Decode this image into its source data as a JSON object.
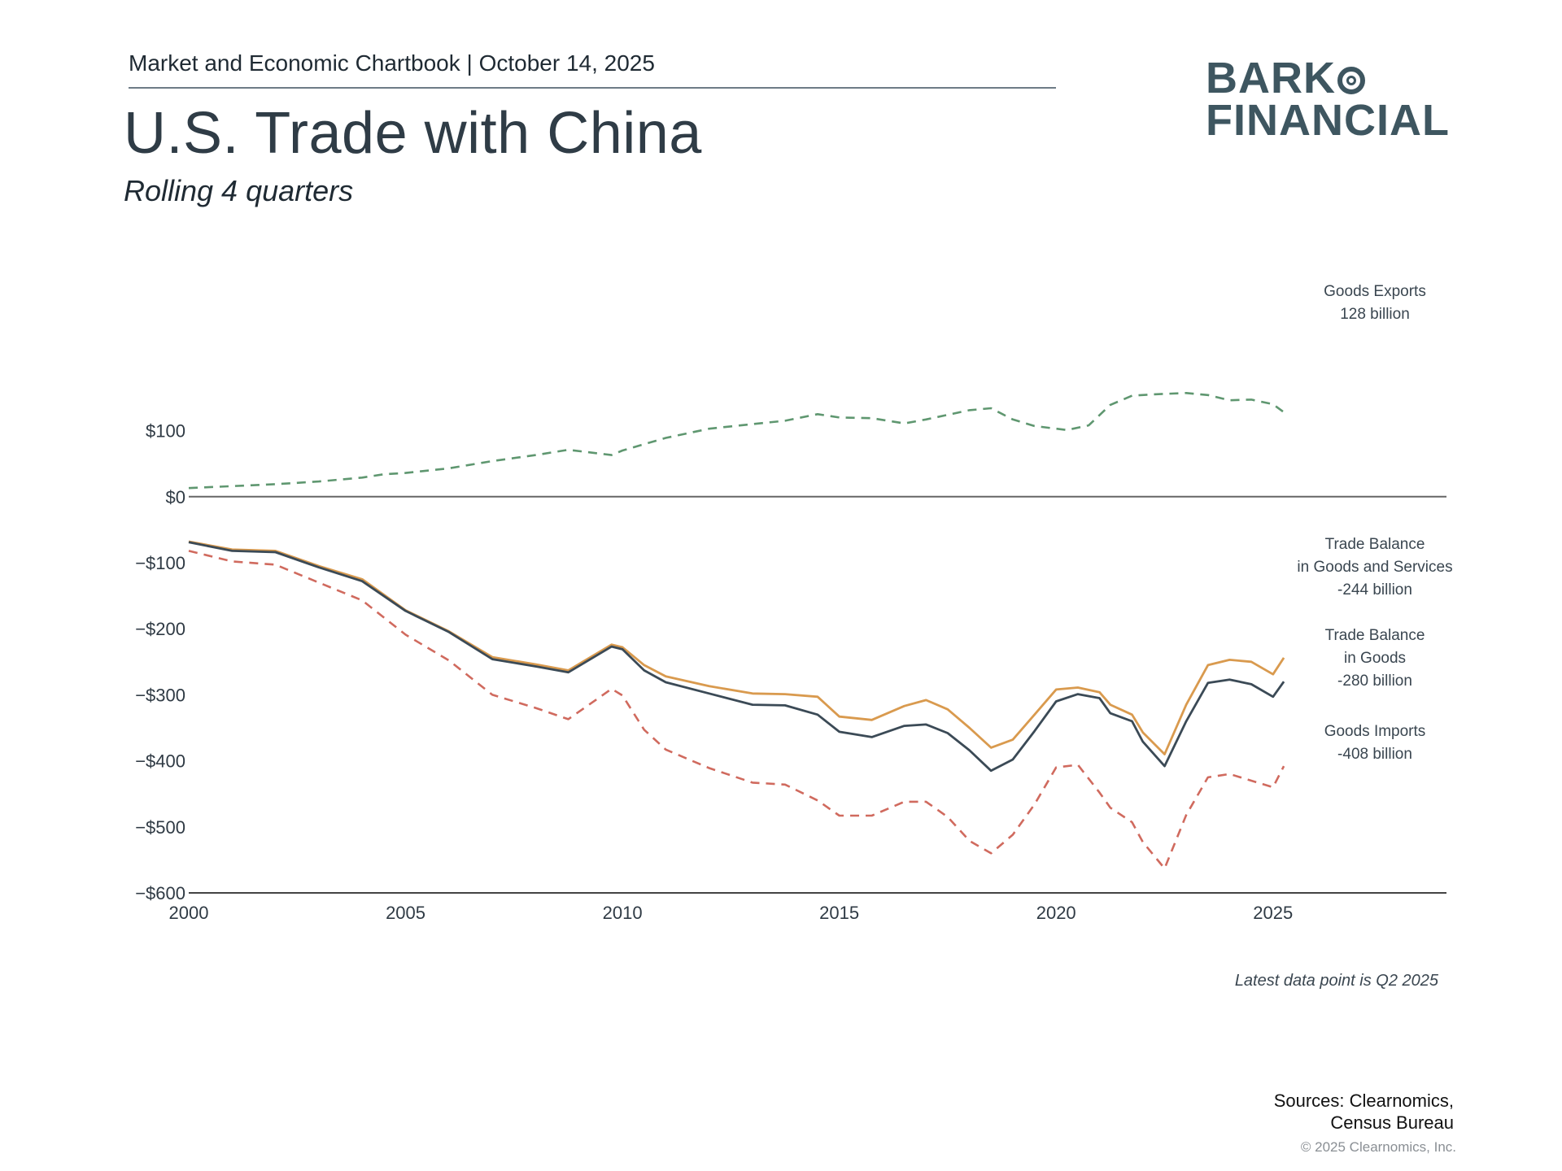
{
  "header": {
    "chartbook": "Market and Economic Chartbook | October 14, 2025",
    "title": "U.S. Trade with China",
    "subtitle": "Rolling 4 quarters"
  },
  "logo": {
    "line1": "BARK",
    "line2": "FINANCIAL"
  },
  "footer": {
    "note": "Latest data point is Q2 2025",
    "sources_line1": "Sources: Clearnomics,",
    "sources_line2": "Census Bureau",
    "copyright": "© 2025 Clearnomics, Inc."
  },
  "colors": {
    "exports": "#5f9770",
    "balance_gs": "#d99a4e",
    "balance_goods": "#3b4a56",
    "imports": "#d06a5e",
    "axis": "#555555"
  },
  "chart_data": {
    "type": "line",
    "title": "U.S. Trade with China",
    "subtitle": "Rolling 4 quarters",
    "xlabel": "",
    "ylabel": "",
    "xlim": [
      2000,
      2029
    ],
    "ylim": [
      -600,
      150
    ],
    "x_ticks": [
      2000,
      2005,
      2010,
      2015,
      2020,
      2025
    ],
    "y_ticks": [
      100,
      0,
      -100,
      -200,
      -300,
      -400,
      -500,
      -600
    ],
    "y_tick_labels": [
      "$100",
      "$0",
      "−$100",
      "−$200",
      "−$300",
      "−$400",
      "−$500",
      "−$600"
    ],
    "grid": false,
    "series": [
      {
        "name": "Goods Exports",
        "label_lines": [
          "Goods Exports",
          "128 billion"
        ],
        "style": "dashed",
        "color": "#5f9770",
        "points": [
          [
            2000.0,
            13
          ],
          [
            2001.0,
            16
          ],
          [
            2002.0,
            19
          ],
          [
            2003.0,
            23
          ],
          [
            2004.0,
            29
          ],
          [
            2004.5,
            34
          ],
          [
            2005.0,
            36
          ],
          [
            2006.0,
            43
          ],
          [
            2007.0,
            54
          ],
          [
            2008.0,
            63
          ],
          [
            2008.75,
            71
          ],
          [
            2009.75,
            63
          ],
          [
            2010.0,
            70
          ],
          [
            2011.0,
            89
          ],
          [
            2012.0,
            103
          ],
          [
            2013.0,
            110
          ],
          [
            2013.75,
            115
          ],
          [
            2014.5,
            125
          ],
          [
            2015.0,
            120
          ],
          [
            2015.75,
            119
          ],
          [
            2016.5,
            111
          ],
          [
            2017.0,
            117
          ],
          [
            2018.0,
            131
          ],
          [
            2018.5,
            134
          ],
          [
            2019.0,
            117
          ],
          [
            2019.5,
            107
          ],
          [
            2020.25,
            101
          ],
          [
            2020.75,
            108
          ],
          [
            2021.25,
            139
          ],
          [
            2021.75,
            153
          ],
          [
            2022.25,
            155
          ],
          [
            2023.0,
            157
          ],
          [
            2023.5,
            154
          ],
          [
            2024.0,
            146
          ],
          [
            2024.5,
            147
          ],
          [
            2025.0,
            140
          ],
          [
            2025.25,
            128
          ]
        ]
      },
      {
        "name": "Trade Balance in Goods and Services",
        "label_lines": [
          "Trade Balance",
          "in Goods and Services",
          "-244 billion"
        ],
        "style": "solid",
        "color": "#d99a4e",
        "points": [
          [
            2000.0,
            -68
          ],
          [
            2001.0,
            -80
          ],
          [
            2002.0,
            -82
          ],
          [
            2003.0,
            -105
          ],
          [
            2004.0,
            -125
          ],
          [
            2005.0,
            -172
          ],
          [
            2006.0,
            -204
          ],
          [
            2007.0,
            -243
          ],
          [
            2008.0,
            -254
          ],
          [
            2008.75,
            -263
          ],
          [
            2009.75,
            -224
          ],
          [
            2010.0,
            -228
          ],
          [
            2010.5,
            -255
          ],
          [
            2011.0,
            -272
          ],
          [
            2012.0,
            -287
          ],
          [
            2013.0,
            -298
          ],
          [
            2013.75,
            -299
          ],
          [
            2014.5,
            -303
          ],
          [
            2015.0,
            -333
          ],
          [
            2015.75,
            -338
          ],
          [
            2016.5,
            -317
          ],
          [
            2017.0,
            -308
          ],
          [
            2017.5,
            -322
          ],
          [
            2018.0,
            -350
          ],
          [
            2018.5,
            -380
          ],
          [
            2019.0,
            -368
          ],
          [
            2019.5,
            -330
          ],
          [
            2020.0,
            -292
          ],
          [
            2020.5,
            -289
          ],
          [
            2021.0,
            -296
          ],
          [
            2021.25,
            -315
          ],
          [
            2021.75,
            -330
          ],
          [
            2022.0,
            -357
          ],
          [
            2022.5,
            -390
          ],
          [
            2023.0,
            -315
          ],
          [
            2023.5,
            -255
          ],
          [
            2024.0,
            -247
          ],
          [
            2024.5,
            -250
          ],
          [
            2025.0,
            -269
          ],
          [
            2025.25,
            -244
          ]
        ]
      },
      {
        "name": "Trade Balance in Goods",
        "label_lines": [
          "Trade Balance",
          "in Goods",
          "-280 billion"
        ],
        "style": "solid",
        "color": "#3b4a56",
        "points": [
          [
            2000.0,
            -69
          ],
          [
            2001.0,
            -82
          ],
          [
            2002.0,
            -84
          ],
          [
            2003.0,
            -107
          ],
          [
            2004.0,
            -128
          ],
          [
            2005.0,
            -173
          ],
          [
            2006.0,
            -205
          ],
          [
            2007.0,
            -246
          ],
          [
            2008.0,
            -257
          ],
          [
            2008.75,
            -266
          ],
          [
            2009.75,
            -227
          ],
          [
            2010.0,
            -231
          ],
          [
            2010.5,
            -263
          ],
          [
            2011.0,
            -281
          ],
          [
            2012.0,
            -298
          ],
          [
            2013.0,
            -315
          ],
          [
            2013.75,
            -316
          ],
          [
            2014.5,
            -330
          ],
          [
            2015.0,
            -356
          ],
          [
            2015.75,
            -364
          ],
          [
            2016.5,
            -347
          ],
          [
            2017.0,
            -345
          ],
          [
            2017.5,
            -358
          ],
          [
            2018.0,
            -384
          ],
          [
            2018.5,
            -415
          ],
          [
            2019.0,
            -398
          ],
          [
            2019.5,
            -355
          ],
          [
            2020.0,
            -310
          ],
          [
            2020.5,
            -299
          ],
          [
            2021.0,
            -305
          ],
          [
            2021.25,
            -328
          ],
          [
            2021.75,
            -340
          ],
          [
            2022.0,
            -371
          ],
          [
            2022.5,
            -408
          ],
          [
            2023.0,
            -340
          ],
          [
            2023.5,
            -282
          ],
          [
            2024.0,
            -277
          ],
          [
            2024.5,
            -284
          ],
          [
            2025.0,
            -303
          ],
          [
            2025.25,
            -280
          ]
        ]
      },
      {
        "name": "Goods Imports",
        "label_lines": [
          "Goods Imports",
          "-408 billion"
        ],
        "style": "dashed",
        "color": "#d06a5e",
        "points": [
          [
            2000.0,
            -82
          ],
          [
            2001.0,
            -98
          ],
          [
            2002.0,
            -103
          ],
          [
            2003.0,
            -130
          ],
          [
            2004.0,
            -157
          ],
          [
            2005.0,
            -209
          ],
          [
            2006.0,
            -248
          ],
          [
            2007.0,
            -300
          ],
          [
            2008.0,
            -320
          ],
          [
            2008.75,
            -337
          ],
          [
            2009.75,
            -291
          ],
          [
            2010.0,
            -301
          ],
          [
            2010.5,
            -353
          ],
          [
            2011.0,
            -383
          ],
          [
            2012.0,
            -411
          ],
          [
            2013.0,
            -433
          ],
          [
            2013.75,
            -436
          ],
          [
            2014.5,
            -460
          ],
          [
            2015.0,
            -483
          ],
          [
            2015.75,
            -483
          ],
          [
            2016.5,
            -462
          ],
          [
            2017.0,
            -462
          ],
          [
            2017.5,
            -485
          ],
          [
            2018.0,
            -521
          ],
          [
            2018.5,
            -540
          ],
          [
            2019.0,
            -512
          ],
          [
            2019.5,
            -466
          ],
          [
            2020.0,
            -410
          ],
          [
            2020.5,
            -406
          ],
          [
            2021.0,
            -448
          ],
          [
            2021.25,
            -471
          ],
          [
            2021.75,
            -493
          ],
          [
            2022.0,
            -523
          ],
          [
            2022.5,
            -563
          ],
          [
            2023.0,
            -482
          ],
          [
            2023.5,
            -425
          ],
          [
            2024.0,
            -420
          ],
          [
            2024.5,
            -430
          ],
          [
            2025.0,
            -440
          ],
          [
            2025.25,
            -408
          ]
        ]
      }
    ]
  }
}
